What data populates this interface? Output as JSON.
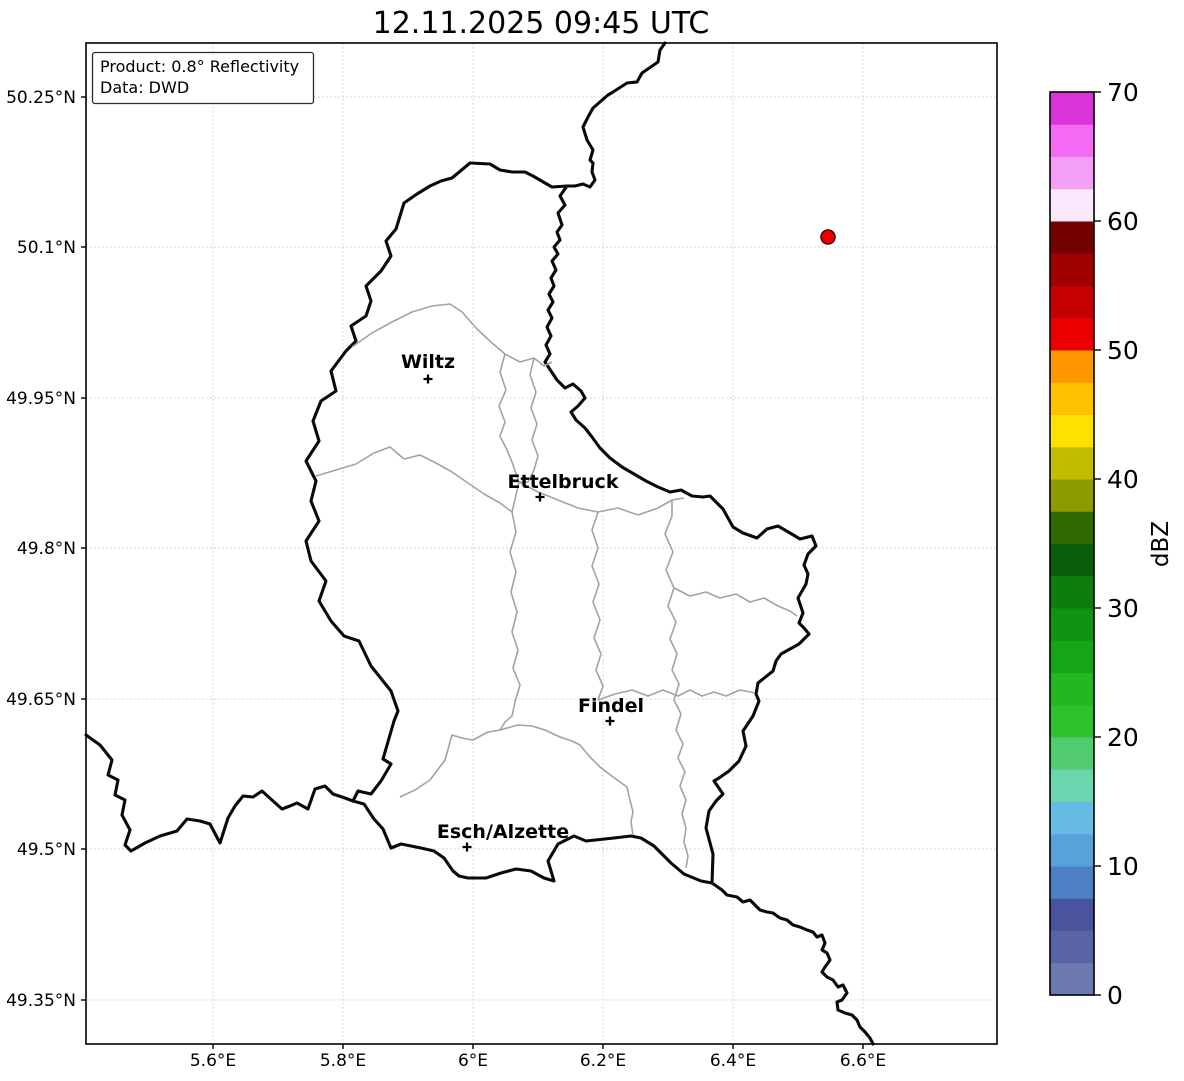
{
  "title": "12.11.2025 09:45 UTC",
  "info_box": {
    "line1": "Product: 0.8° Reflectivity",
    "line2": "Data: DWD"
  },
  "axes": {
    "x_ticks": [
      "5.6°E",
      "5.8°E",
      "6°E",
      "6.2°E",
      "6.4°E",
      "6.6°E"
    ],
    "y_ticks": [
      "50.25°N",
      "50.1°N",
      "49.95°N",
      "49.8°N",
      "49.65°N",
      "49.5°N",
      "49.35°N"
    ]
  },
  "cities": [
    {
      "name": "Wiltz"
    },
    {
      "name": "Ettelbruck"
    },
    {
      "name": "Findel"
    },
    {
      "name": "Esch/Alzette"
    }
  ],
  "radar_point": {
    "fill": "#ee0000",
    "edge": "#550000"
  },
  "colorbar": {
    "label": "dBZ",
    "ticks": [
      "0",
      "10",
      "20",
      "30",
      "40",
      "50",
      "60",
      "70"
    ],
    "min": 0,
    "max": 70,
    "step_dbz": 2.5,
    "colors_bottom_to_top": [
      "#6d7ab2",
      "#5864a6",
      "#49549d",
      "#4c7fc3",
      "#57a2d9",
      "#66bbe2",
      "#6bd5b0",
      "#52cb6e",
      "#2dc12d",
      "#22b822",
      "#17a517",
      "#119211",
      "#0d7d0d",
      "#0a5e0a",
      "#2f6b00",
      "#8c9c00",
      "#c2bc00",
      "#ffe100",
      "#ffc000",
      "#ff9600",
      "#ea0000",
      "#c60000",
      "#a00000",
      "#740000",
      "#fce8fc",
      "#f59ef5",
      "#f26bf2",
      "#d935d9"
    ]
  }
}
